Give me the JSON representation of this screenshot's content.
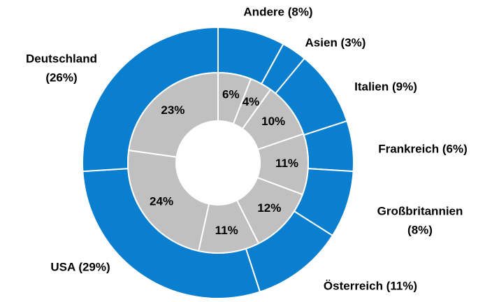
{
  "chart_data": {
    "type": "donut",
    "series": [
      {
        "color": "#0a7fd0",
        "values": [
          8,
          3,
          9,
          6,
          8,
          11,
          29,
          26
        ],
        "value_labels": [
          [
            "Andere (8%)"
          ],
          [
            "Asien (3%)"
          ],
          [
            "Italien (9%)"
          ],
          [
            "Frankreich (6%)"
          ],
          [
            "Großbritannien",
            "(8%)"
          ],
          [
            "Österreich (11%)"
          ],
          [
            "USA (29%)"
          ],
          [
            "Deutschland",
            "(26%)"
          ]
        ]
      },
      {
        "color": "#c0c0c0",
        "values": [
          6,
          4,
          10,
          11,
          12,
          11,
          24,
          23
        ],
        "value_labels": [
          "6%",
          "4%",
          "10%",
          "11%",
          "12%",
          "11%",
          "24%",
          "23%"
        ]
      }
    ]
  }
}
